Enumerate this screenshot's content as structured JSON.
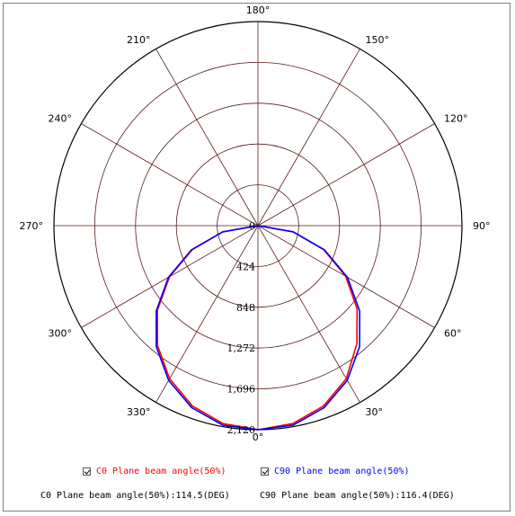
{
  "chart_data": {
    "type": "polar",
    "angle_labels": [
      "0°",
      "30°",
      "60°",
      "90°",
      "120°",
      "150°",
      "180°",
      "210°",
      "240°",
      "270°",
      "300°",
      "330°"
    ],
    "radial_labels": [
      "0",
      "424",
      "848",
      "1,272",
      "1,696",
      "2,120"
    ],
    "rmax": 2120,
    "series": [
      {
        "name": "C0 Plane beam angle(50%)",
        "color": "#ff0000",
        "checked": true,
        "angles": [
          -90,
          -80,
          -70,
          -60,
          -50,
          -40,
          -30,
          -20,
          -10,
          0,
          10,
          20,
          30,
          40,
          50,
          60,
          70,
          80,
          90
        ],
        "values": [
          0,
          368,
          725,
          1060,
          1363,
          1624,
          1836,
          1993,
          2088,
          2120,
          2088,
          1993,
          1836,
          1600,
          1345,
          1053,
          725,
          368,
          0
        ]
      },
      {
        "name": "C90 Plane beam angle(50%)",
        "color": "#0000ff",
        "checked": true,
        "angles": [
          -90,
          -80,
          -70,
          -60,
          -50,
          -40,
          -30,
          -20,
          -10,
          0,
          10,
          20,
          30,
          40,
          50,
          60,
          70,
          80,
          90
        ],
        "values": [
          0,
          373,
          735,
          1074,
          1380,
          1643,
          1856,
          2012,
          2105,
          2120,
          2105,
          2012,
          1856,
          1643,
          1380,
          1074,
          735,
          373,
          0
        ]
      }
    ]
  },
  "summary": {
    "c0": "C0 Plane beam angle(50%):114.5(DEG)",
    "c90": "C90 Plane beam angle(50%):116.4(DEG)"
  }
}
